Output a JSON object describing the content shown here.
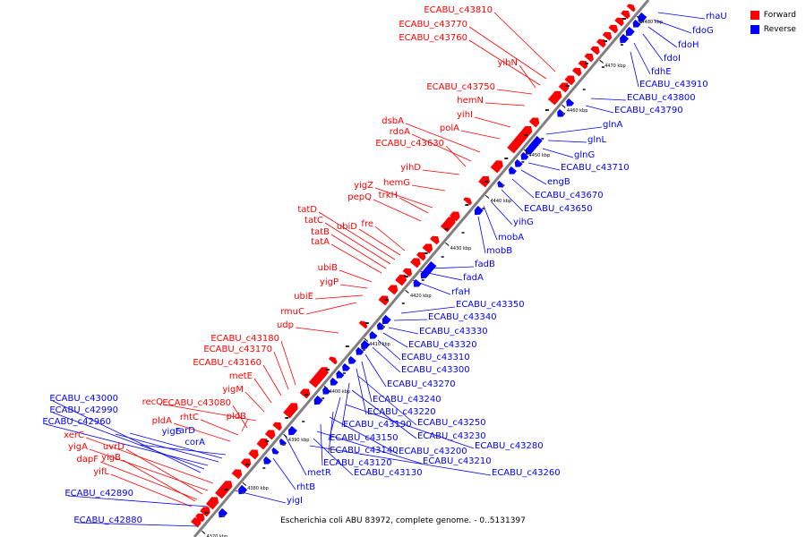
{
  "caption": "Escherichia coli ABU 83972, complete genome. - 0..5131397",
  "legend": {
    "forward_label": "Forward",
    "reverse_label": "Reverse",
    "forward_color": "#ff0000",
    "reverse_color": "#0000ff"
  },
  "colors": {
    "forward": "#ff0000",
    "reverse": "#0000ff",
    "backbone": "#808080",
    "tick": "#000000"
  },
  "ticks": [
    "4370 kbp",
    "4380 kbp",
    "4390 kbp",
    "4400 kbp",
    "4410 kbp",
    "4420 kbp",
    "4430 kbp",
    "4440 kbp",
    "4450 kbp",
    "4460 kbp",
    "4470 kbp",
    "4480 kbp"
  ],
  "forward_labels": [
    "ECABU_c43810",
    "ECABU_c43770",
    "ECABU_c43760",
    "yihN",
    "ECABU_c43750",
    "hemN",
    "yihI",
    "polA",
    "dsbA",
    "rdoA",
    "ECABU_c43630",
    "yihD",
    "hemG",
    "yigZ",
    "trkH",
    "pepQ",
    "fre",
    "ubiD",
    "tatD",
    "tatC",
    "tatB",
    "tatA",
    "ubiB",
    "yigP",
    "ubiE",
    "rmuC",
    "udp",
    "ECABU_c43180",
    "ECABU_c43170",
    "ECABU_c43160",
    "metE",
    "yigM",
    "recQ",
    "ECABU_c43080",
    "rhtC",
    "pldB",
    "pldA",
    "xerC",
    "yigA",
    "uvrD",
    "dapF",
    "yigB",
    "yifL"
  ],
  "reverse_labels": [
    "rhaU",
    "fdoG",
    "fdoH",
    "fdoI",
    "fdhE",
    "ECABU_c43910",
    "ECABU_c43800",
    "ECABU_c43790",
    "glnA",
    "glnL",
    "glnG",
    "ECABU_c43710",
    "engB",
    "ECABU_c43670",
    "ECABU_c43650",
    "yihG",
    "mobA",
    "mobB",
    "fadB",
    "fadA",
    "rfaH",
    "ECABU_c43350",
    "ECABU_c43340",
    "ECABU_c43330",
    "ECABU_c43320",
    "ECABU_c43310",
    "ECABU_c43300",
    "ECABU_c43270",
    "ECABU_c43240",
    "ECABU_c43220",
    "ECABU_c43250",
    "ECABU_c43190",
    "ECABU_c43230",
    "ECABU_c43150",
    "ECABU_c43280",
    "ECABU_c43140",
    "ECABU_c43200",
    "ECABU_c43120",
    "ECABU_c43210",
    "ECABU_c43130",
    "ECABU_c43260",
    "metR",
    "rhtB",
    "yigI",
    "ECABU_c43000",
    "ECABU_c42990",
    "ECABU_c42960",
    "yigE",
    "rarD",
    "corA",
    "ECABU_c42890",
    "ECABU_c42880"
  ]
}
